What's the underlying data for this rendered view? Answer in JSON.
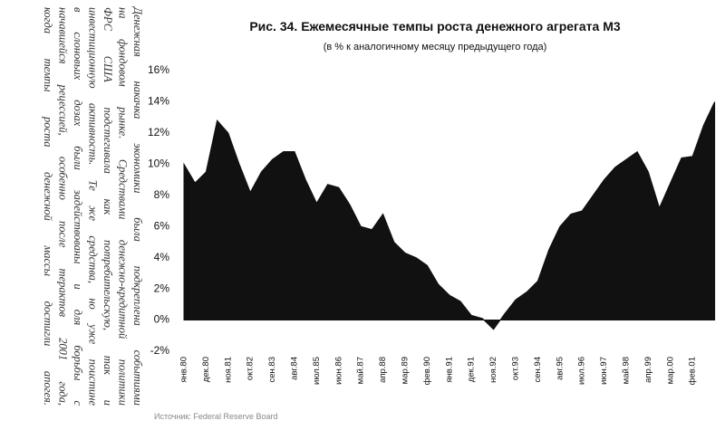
{
  "side_text": [
    "Денежная накачка экономики была подкреплена событиями",
    "на фондовом рынке. Средствами денежно-кредитной политики",
    "ФРС США подстегивала как потребительскую, так и",
    "инвестиционную активность. Те же средства, но уже поистине",
    "в слоновьих дозах были задействованы и для борьбы с",
    "начавшейся рецессией, особенно после терактов 2001 года,",
    "когда темпы роста денежной массы достигли апогея."
  ],
  "chart_data": {
    "type": "area",
    "title": "Рис. 34. Ежемесячные темпы роста денежного агрегата М3",
    "subtitle": "(в % к аналогичному месяцу предыдущего года)",
    "source": "Источник: Federal Reserve Board",
    "color": "#111111",
    "categories": [
      "янв.80",
      null,
      "дек.80",
      null,
      "ноя.81",
      null,
      "окт.82",
      null,
      "сен.83",
      null,
      "авг.84",
      null,
      "июл.85",
      null,
      "июн.86",
      null,
      "май.87",
      null,
      "апр.88",
      null,
      "мар.89",
      null,
      "фев.90",
      null,
      "янв.91",
      null,
      "дек.91",
      null,
      "ноя.92",
      null,
      "окт.93",
      null,
      "сен.94",
      null,
      "авг.95",
      null,
      "июл.96",
      null,
      "июн.97",
      null,
      "май.98",
      null,
      "апр.99",
      null,
      "мар.00",
      null,
      "фев.01",
      null,
      null
    ],
    "values": [
      10,
      8.8,
      9.5,
      12.8,
      12,
      10,
      8.2,
      9.5,
      10.3,
      10.8,
      10.8,
      9,
      7.5,
      8.7,
      8.5,
      7.4,
      6,
      5.8,
      6.8,
      5,
      4.3,
      4,
      3.5,
      2.3,
      1.6,
      1.2,
      0.3,
      0.1,
      -0.6,
      0.4,
      1.3,
      1.8,
      2.5,
      4.5,
      6,
      6.8,
      7,
      8,
      9,
      9.8,
      10.3,
      10.8,
      9.5,
      7.2,
      8.8,
      10.4,
      10.5,
      12.5,
      14
    ],
    "ylim": [
      -2,
      16
    ],
    "yticks": [
      {
        "value": -2,
        "label": "-2%"
      },
      {
        "value": 0,
        "label": "0%"
      },
      {
        "value": 2,
        "label": "2%"
      },
      {
        "value": 4,
        "label": "4%"
      },
      {
        "value": 6,
        "label": "6%"
      },
      {
        "value": 8,
        "label": "8%"
      },
      {
        "value": 10,
        "label": "10%"
      },
      {
        "value": 12,
        "label": "12%"
      },
      {
        "value": 14,
        "label": "14%"
      },
      {
        "value": 16,
        "label": "16%"
      }
    ]
  }
}
